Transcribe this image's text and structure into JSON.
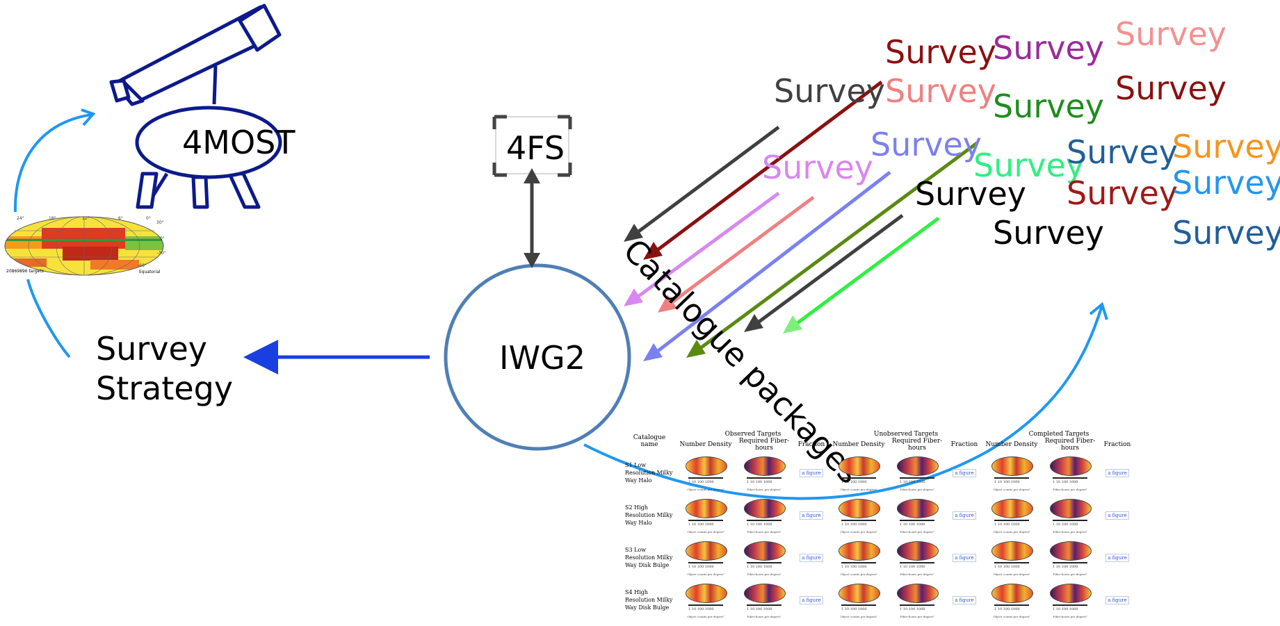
{
  "nodes": {
    "telescope_label": "4MOST",
    "fs_label": "4FS",
    "iwg2_label": "IWG2",
    "strategy_line1": "Survey",
    "strategy_line2": "Strategy",
    "catalogue_packages": "Catalogue packages"
  },
  "surveys": [
    {
      "text": "Survey",
      "color": "#404040"
    },
    {
      "text": "Survey",
      "color": "#8b1010"
    },
    {
      "text": "Survey",
      "color": "#f08080"
    },
    {
      "text": "Survey",
      "color": "#9b2a9b"
    },
    {
      "text": "Survey",
      "color": "#1e8c1e"
    },
    {
      "text": "Survey",
      "color": "#f49090"
    },
    {
      "text": "Survey",
      "color": "#8b1010"
    },
    {
      "text": "Survey",
      "color": "#d887f0"
    },
    {
      "text": "Survey",
      "color": "#7b80f0"
    },
    {
      "text": "Survey",
      "color": "#2ef080"
    },
    {
      "text": "Survey",
      "color": "#000000"
    },
    {
      "text": "Survey",
      "color": "#1f5f99"
    },
    {
      "text": "Survey",
      "color": "#a01818"
    },
    {
      "text": "Survey",
      "color": "#000000"
    },
    {
      "text": "Survey",
      "color": "#f5941e"
    },
    {
      "text": "Survey",
      "color": "#2396f0"
    },
    {
      "text": "Survey",
      "color": "#1f5f99"
    }
  ],
  "skymap": {
    "targets_label": "20869896 targets",
    "projection_label": "Equatorial",
    "ra_ticks": [
      "24°",
      "18°",
      "12°",
      "6°",
      "0°"
    ],
    "dec_ticks": [
      "30°",
      "0°",
      "-30°",
      "-60°"
    ]
  },
  "table": {
    "col_catalogue": "Catalogue name",
    "group_observed": "Observed Targets",
    "group_unobserved": "Unobserved Targets",
    "group_completed": "Completed Targets",
    "sub_density": "Number Density",
    "sub_fiber": "Required Fiber-hours",
    "sub_fraction": "Fraction",
    "figure_link": "a figure",
    "density_caption": "Object counts per degree²",
    "fiber_caption": "Fiber-hours per degree²",
    "tick_row": "1    10    100    1000",
    "rows": [
      "S1 Low Resolution Milky Way Halo",
      "S2 High Resolution Milky Way Halo",
      "S3 Low Resolution Milky Way Disk Bulge",
      "S4 High Resolution Milky Way Disk Bulge"
    ]
  },
  "colors": {
    "telescope": "#0c1a8c",
    "iwg2_circle": "#4f7fb5",
    "strategy_arrow": "#1a3fe0",
    "cycle_arrow": "#1e98f0"
  }
}
